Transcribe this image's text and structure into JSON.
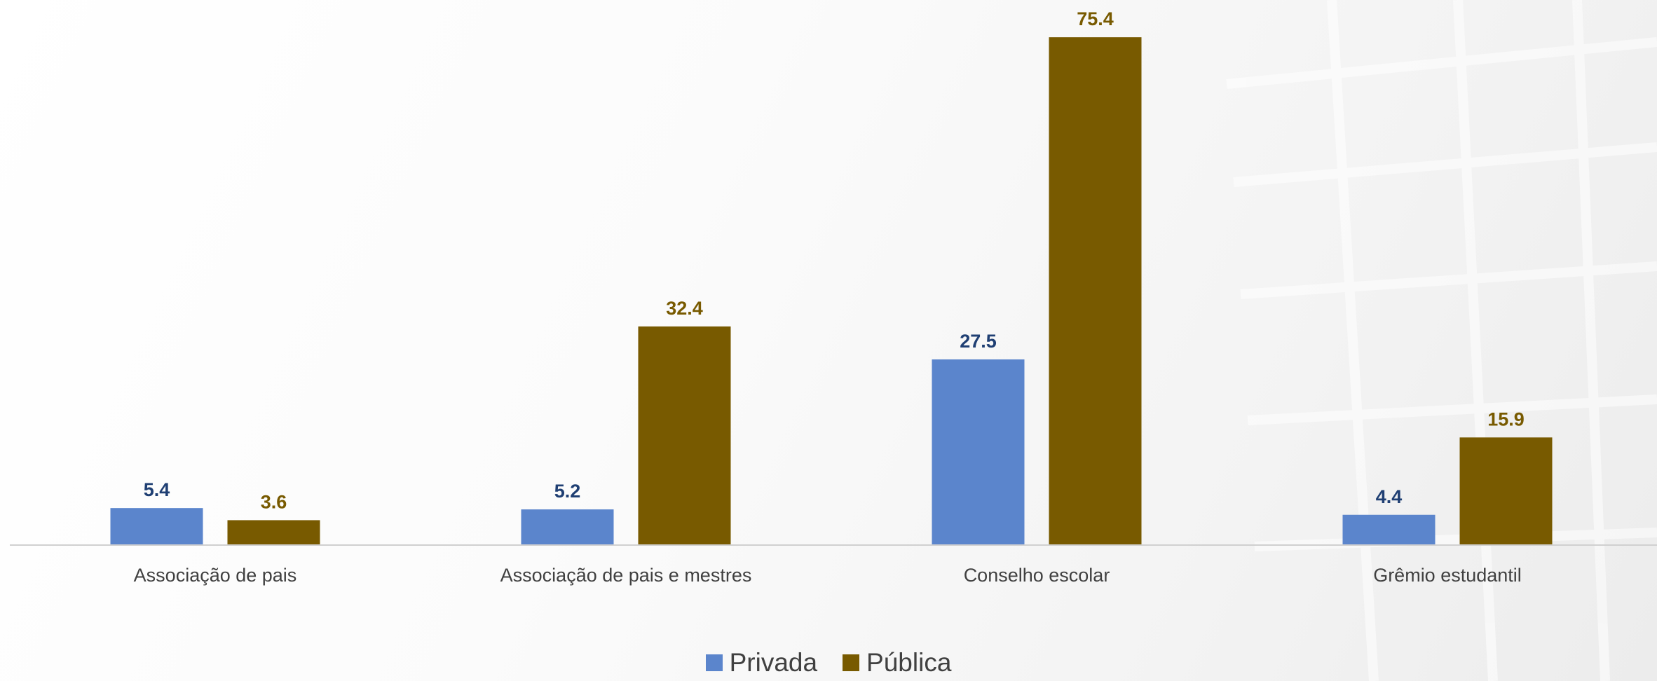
{
  "chart_data": {
    "type": "bar",
    "categories": [
      "Associação de pais",
      "Associação de pais e mestres",
      "Conselho escolar",
      "Grêmio estudantil"
    ],
    "series": [
      {
        "name": "Privada",
        "values": [
          5.4,
          5.2,
          27.5,
          4.4
        ],
        "color": "#5b85cc",
        "label_color": "#1f3f73"
      },
      {
        "name": "Pública",
        "values": [
          3.6,
          32.4,
          75.4,
          15.9
        ],
        "color": "#785a00",
        "label_color": "#785a00"
      }
    ],
    "ylim": [
      0,
      80
    ],
    "grid": false,
    "legend_position": "bottom"
  }
}
